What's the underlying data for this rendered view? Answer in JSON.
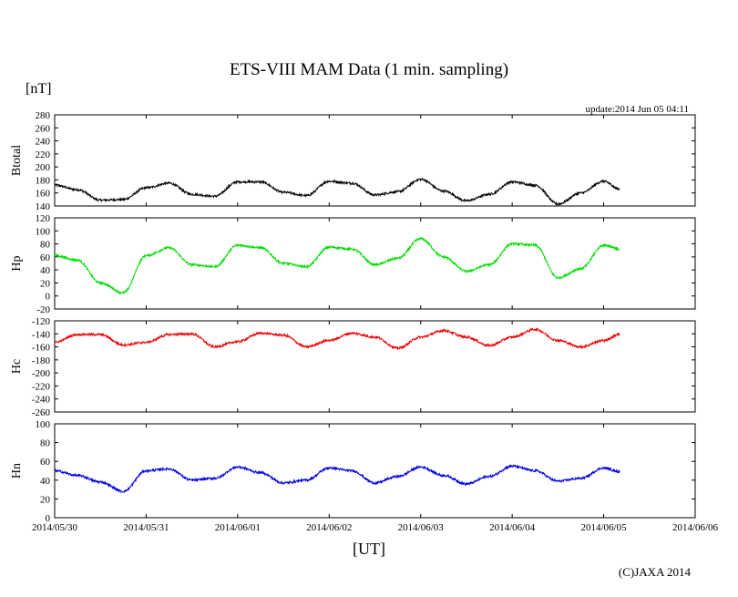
{
  "header": {
    "title": "ETS-VIII MAM Data (1 min. sampling)",
    "unit": "[nT]",
    "update": "update:2014 Jun 05 04:11",
    "xaxis_label": "[UT]",
    "copyright": "(C)JAXA 2014"
  },
  "chart_data": {
    "type": "line",
    "title": "ETS-VIII MAM Data (1 min. sampling)",
    "xlabel": "[UT]",
    "ylabel": "[nT]",
    "x_ticks": [
      "2014/05/30",
      "2014/05/31",
      "2014/06/01",
      "2014/06/02",
      "2014/06/03",
      "2014/06/04",
      "2014/06/05",
      "2014/06/06"
    ],
    "x_start": "2014/05/30 00:00",
    "x_end": "2014/06/06 00:00",
    "data_end": "2014/06/05 04:11",
    "panels": [
      {
        "name": "Btotal",
        "color": "#000000",
        "ylim": [
          140,
          280
        ],
        "yticks": [
          140,
          160,
          180,
          200,
          220,
          240,
          260,
          280
        ],
        "series": [
          {
            "x": "2014/05/30 00:00",
            "y": 172
          },
          {
            "x": "2014/05/30 06:00",
            "y": 165
          },
          {
            "x": "2014/05/30 12:00",
            "y": 149
          },
          {
            "x": "2014/05/30 18:00",
            "y": 150
          },
          {
            "x": "2014/05/31 00:00",
            "y": 168
          },
          {
            "x": "2014/05/31 06:00",
            "y": 175
          },
          {
            "x": "2014/05/31 12:00",
            "y": 158
          },
          {
            "x": "2014/05/31 18:00",
            "y": 155
          },
          {
            "x": "2014/06/01 00:00",
            "y": 177
          },
          {
            "x": "2014/06/01 06:00",
            "y": 177
          },
          {
            "x": "2014/06/01 12:00",
            "y": 161
          },
          {
            "x": "2014/06/01 18:00",
            "y": 156
          },
          {
            "x": "2014/06/02 00:00",
            "y": 178
          },
          {
            "x": "2014/06/02 06:00",
            "y": 175
          },
          {
            "x": "2014/06/02 12:00",
            "y": 157
          },
          {
            "x": "2014/06/02 18:00",
            "y": 162
          },
          {
            "x": "2014/06/03 00:00",
            "y": 181
          },
          {
            "x": "2014/06/03 06:00",
            "y": 163
          },
          {
            "x": "2014/06/03 12:00",
            "y": 148
          },
          {
            "x": "2014/06/03 18:00",
            "y": 158
          },
          {
            "x": "2014/06/04 00:00",
            "y": 177
          },
          {
            "x": "2014/06/04 06:00",
            "y": 172
          },
          {
            "x": "2014/06/04 12:00",
            "y": 143
          },
          {
            "x": "2014/06/04 18:00",
            "y": 160
          },
          {
            "x": "2014/06/05 00:00",
            "y": 178
          },
          {
            "x": "2014/06/05 04:11",
            "y": 166
          }
        ]
      },
      {
        "name": "Hp",
        "color": "#00dd00",
        "ylim": [
          -20,
          120
        ],
        "yticks": [
          -20,
          0,
          20,
          40,
          60,
          80,
          100,
          120
        ],
        "series": [
          {
            "x": "2014/05/30 00:00",
            "y": 62
          },
          {
            "x": "2014/05/30 06:00",
            "y": 55
          },
          {
            "x": "2014/05/30 12:00",
            "y": 20
          },
          {
            "x": "2014/05/30 18:00",
            "y": 5
          },
          {
            "x": "2014/05/31 00:00",
            "y": 62
          },
          {
            "x": "2014/05/31 06:00",
            "y": 74
          },
          {
            "x": "2014/05/31 12:00",
            "y": 48
          },
          {
            "x": "2014/05/31 18:00",
            "y": 45
          },
          {
            "x": "2014/06/01 00:00",
            "y": 78
          },
          {
            "x": "2014/06/01 06:00",
            "y": 74
          },
          {
            "x": "2014/06/01 12:00",
            "y": 50
          },
          {
            "x": "2014/06/01 18:00",
            "y": 45
          },
          {
            "x": "2014/06/02 00:00",
            "y": 75
          },
          {
            "x": "2014/06/02 06:00",
            "y": 72
          },
          {
            "x": "2014/06/02 12:00",
            "y": 48
          },
          {
            "x": "2014/06/02 18:00",
            "y": 58
          },
          {
            "x": "2014/06/03 00:00",
            "y": 88
          },
          {
            "x": "2014/06/03 06:00",
            "y": 60
          },
          {
            "x": "2014/06/03 12:00",
            "y": 38
          },
          {
            "x": "2014/06/03 18:00",
            "y": 48
          },
          {
            "x": "2014/06/04 00:00",
            "y": 80
          },
          {
            "x": "2014/06/04 06:00",
            "y": 78
          },
          {
            "x": "2014/06/04 12:00",
            "y": 28
          },
          {
            "x": "2014/06/04 18:00",
            "y": 42
          },
          {
            "x": "2014/06/05 00:00",
            "y": 78
          },
          {
            "x": "2014/06/05 04:11",
            "y": 72
          }
        ]
      },
      {
        "name": "Hc",
        "color": "#ee0000",
        "ylim": [
          -260,
          -120
        ],
        "yticks": [
          -260,
          -240,
          -220,
          -200,
          -180,
          -160,
          -140,
          -120
        ],
        "series": [
          {
            "x": "2014/05/30 00:00",
            "y": -153
          },
          {
            "x": "2014/05/30 06:00",
            "y": -141
          },
          {
            "x": "2014/05/30 12:00",
            "y": -141
          },
          {
            "x": "2014/05/30 18:00",
            "y": -157
          },
          {
            "x": "2014/05/31 00:00",
            "y": -153
          },
          {
            "x": "2014/05/31 06:00",
            "y": -141
          },
          {
            "x": "2014/05/31 12:00",
            "y": -140
          },
          {
            "x": "2014/05/31 18:00",
            "y": -160
          },
          {
            "x": "2014/06/01 00:00",
            "y": -152
          },
          {
            "x": "2014/06/01 06:00",
            "y": -139
          },
          {
            "x": "2014/06/01 12:00",
            "y": -142
          },
          {
            "x": "2014/06/01 18:00",
            "y": -160
          },
          {
            "x": "2014/06/02 00:00",
            "y": -150
          },
          {
            "x": "2014/06/02 06:00",
            "y": -139
          },
          {
            "x": "2014/06/02 12:00",
            "y": -145
          },
          {
            "x": "2014/06/02 18:00",
            "y": -162
          },
          {
            "x": "2014/06/03 00:00",
            "y": -145
          },
          {
            "x": "2014/06/03 06:00",
            "y": -135
          },
          {
            "x": "2014/06/03 12:00",
            "y": -145
          },
          {
            "x": "2014/06/03 18:00",
            "y": -158
          },
          {
            "x": "2014/06/04 00:00",
            "y": -145
          },
          {
            "x": "2014/06/04 06:00",
            "y": -133
          },
          {
            "x": "2014/06/04 12:00",
            "y": -150
          },
          {
            "x": "2014/06/04 18:00",
            "y": -160
          },
          {
            "x": "2014/06/05 00:00",
            "y": -150
          },
          {
            "x": "2014/06/05 04:11",
            "y": -141
          }
        ]
      },
      {
        "name": "Hn",
        "color": "#0000dd",
        "ylim": [
          0,
          100
        ],
        "yticks": [
          0,
          20,
          40,
          60,
          80,
          100
        ],
        "series": [
          {
            "x": "2014/05/30 00:00",
            "y": 50
          },
          {
            "x": "2014/05/30 06:00",
            "y": 45
          },
          {
            "x": "2014/05/30 12:00",
            "y": 38
          },
          {
            "x": "2014/05/30 18:00",
            "y": 28
          },
          {
            "x": "2014/05/31 00:00",
            "y": 50
          },
          {
            "x": "2014/05/31 06:00",
            "y": 52
          },
          {
            "x": "2014/05/31 12:00",
            "y": 40
          },
          {
            "x": "2014/05/31 18:00",
            "y": 42
          },
          {
            "x": "2014/06/01 00:00",
            "y": 54
          },
          {
            "x": "2014/06/01 06:00",
            "y": 48
          },
          {
            "x": "2014/06/01 12:00",
            "y": 37
          },
          {
            "x": "2014/06/01 18:00",
            "y": 40
          },
          {
            "x": "2014/06/02 00:00",
            "y": 53
          },
          {
            "x": "2014/06/02 06:00",
            "y": 50
          },
          {
            "x": "2014/06/02 12:00",
            "y": 37
          },
          {
            "x": "2014/06/02 18:00",
            "y": 44
          },
          {
            "x": "2014/06/03 00:00",
            "y": 54
          },
          {
            "x": "2014/06/03 06:00",
            "y": 45
          },
          {
            "x": "2014/06/03 12:00",
            "y": 36
          },
          {
            "x": "2014/06/03 18:00",
            "y": 44
          },
          {
            "x": "2014/06/04 00:00",
            "y": 55
          },
          {
            "x": "2014/06/04 06:00",
            "y": 50
          },
          {
            "x": "2014/06/04 12:00",
            "y": 39
          },
          {
            "x": "2014/06/04 18:00",
            "y": 42
          },
          {
            "x": "2014/06/05 00:00",
            "y": 53
          },
          {
            "x": "2014/06/05 04:11",
            "y": 49
          }
        ]
      }
    ]
  }
}
